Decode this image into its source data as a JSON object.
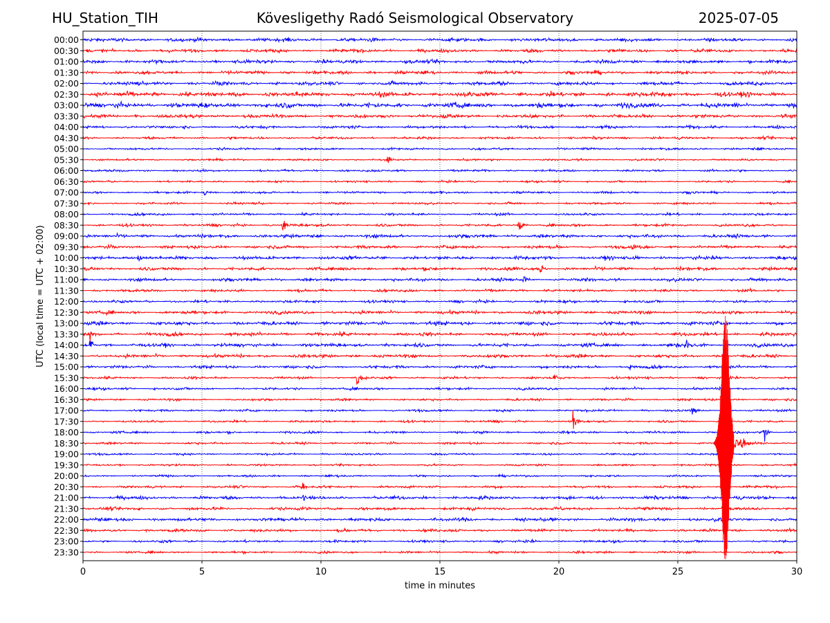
{
  "header": {
    "station": "HU_Station_TIH",
    "observatory": "Kövesligethy Radó Seismological Observatory",
    "date": "2025-07-05"
  },
  "chart_data": {
    "type": "line",
    "xlabel": "time in minutes",
    "ylabel": "UTC (local time = UTC + 02:00)",
    "xlim": [
      0,
      30
    ],
    "x_ticks": [
      0,
      5,
      10,
      15,
      20,
      25,
      30
    ],
    "grid": "vertical dotted",
    "row_labels": [
      "00:00",
      "00:30",
      "01:00",
      "01:30",
      "02:00",
      "02:30",
      "03:00",
      "03:30",
      "04:00",
      "04:30",
      "05:00",
      "05:30",
      "06:00",
      "06:30",
      "07:00",
      "07:30",
      "08:00",
      "08:30",
      "09:00",
      "09:30",
      "10:00",
      "10:30",
      "11:00",
      "11:30",
      "12:00",
      "12:30",
      "13:00",
      "13:30",
      "14:00",
      "14:30",
      "15:00",
      "15:30",
      "16:00",
      "16:30",
      "17:00",
      "17:30",
      "18:00",
      "18:30",
      "19:00",
      "19:30",
      "20:00",
      "20:30",
      "21:00",
      "21:30",
      "22:00",
      "22:30",
      "23:00",
      "23:30"
    ],
    "trace_colors": [
      "#0000ff",
      "#ff0000"
    ],
    "noise_levels": [
      0.8,
      0.75,
      0.8,
      0.75,
      0.8,
      1.1,
      1.1,
      0.8,
      0.65,
      0.55,
      0.5,
      0.45,
      0.5,
      0.45,
      0.5,
      0.5,
      0.55,
      0.6,
      0.75,
      0.7,
      0.8,
      0.75,
      0.7,
      0.6,
      0.6,
      0.75,
      0.85,
      0.8,
      0.8,
      0.75,
      0.65,
      0.55,
      0.55,
      0.5,
      0.5,
      0.5,
      0.5,
      0.5,
      0.45,
      0.45,
      0.45,
      0.55,
      0.75,
      0.7,
      0.75,
      0.65,
      0.55,
      0.5
    ],
    "events": [
      {
        "row": "05:30",
        "minute": 12.8,
        "amplitude": 1.0
      },
      {
        "row": "07:00",
        "minute": 5.1,
        "amplitude": 0.8
      },
      {
        "row": "08:30",
        "minute": 8.4,
        "amplitude": 1.3
      },
      {
        "row": "08:30",
        "minute": 18.3,
        "amplitude": 1.5
      },
      {
        "row": "09:30",
        "minute": 23.1,
        "amplitude": 1.2
      },
      {
        "row": "10:00",
        "minute": 2.3,
        "amplitude": 1.2
      },
      {
        "row": "10:30",
        "minute": 19.2,
        "amplitude": 1.2
      },
      {
        "row": "11:00",
        "minute": 18.5,
        "amplitude": 1.0
      },
      {
        "row": "13:30",
        "minute": 0.3,
        "amplitude": 1.3
      },
      {
        "row": "14:00",
        "minute": 0.3,
        "amplitude": 1.6
      },
      {
        "row": "14:00",
        "minute": 25.3,
        "amplitude": 1.9
      },
      {
        "row": "15:00",
        "minute": 23.0,
        "amplitude": 0.9
      },
      {
        "row": "15:30",
        "minute": 11.5,
        "amplitude": 2.2
      },
      {
        "row": "15:30",
        "minute": 19.8,
        "amplitude": 0.9
      },
      {
        "row": "17:00",
        "minute": 25.6,
        "amplitude": 1.8
      },
      {
        "row": "17:30",
        "minute": 20.6,
        "amplitude": 2.3
      },
      {
        "row": "18:00",
        "minute": 28.6,
        "amplitude": 1.8
      },
      {
        "row": "20:30",
        "minute": 9.2,
        "amplitude": 1.4
      },
      {
        "row": "21:00",
        "minute": 9.2,
        "amplitude": 1.0
      }
    ],
    "earthquake": {
      "row": "18:30",
      "onset_minute": 26.5,
      "peak_minute": 27.0,
      "coda_end_minute": 28.6,
      "spans_rows": [
        "13:00",
        "23:30"
      ]
    }
  }
}
